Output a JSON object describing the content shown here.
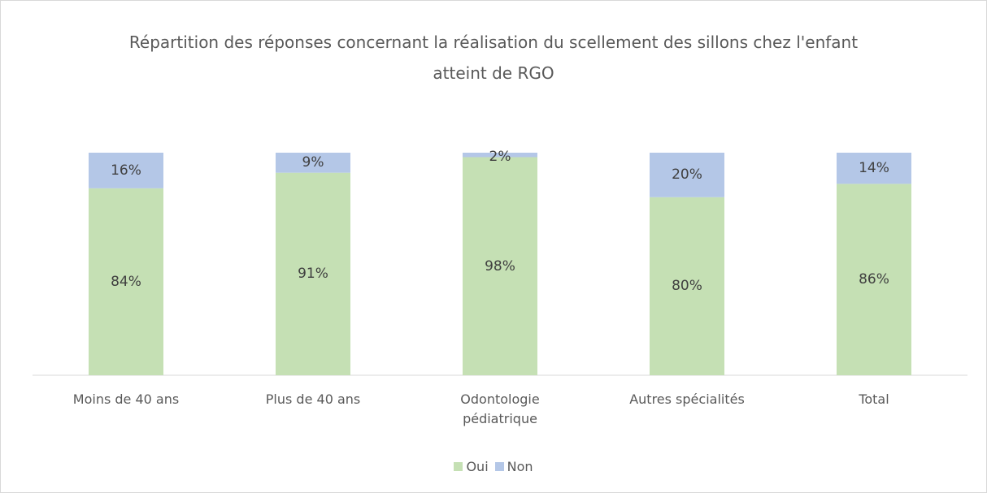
{
  "chart_data": {
    "type": "stacked_bar",
    "title": "Répartition des réponses concernant la réalisation du scellement des sillons chez l'enfant atteint de RGO",
    "categories": [
      "Moins de 40 ans",
      "Plus de 40 ans",
      "Odontologie pédiatrique",
      "Autres spécialités",
      "Total"
    ],
    "series": [
      {
        "name": "Oui",
        "color": "#c5e0b4",
        "values": [
          84,
          91,
          98,
          80,
          86
        ],
        "value_labels": [
          "84%",
          "91%",
          "98%",
          "80%",
          "86%"
        ]
      },
      {
        "name": "Non",
        "color": "#b4c7e7",
        "values": [
          16,
          9,
          2,
          20,
          14
        ],
        "value_labels": [
          "16%",
          "9%",
          "2%",
          "20%",
          "14%"
        ]
      }
    ],
    "legend": "bottom"
  }
}
